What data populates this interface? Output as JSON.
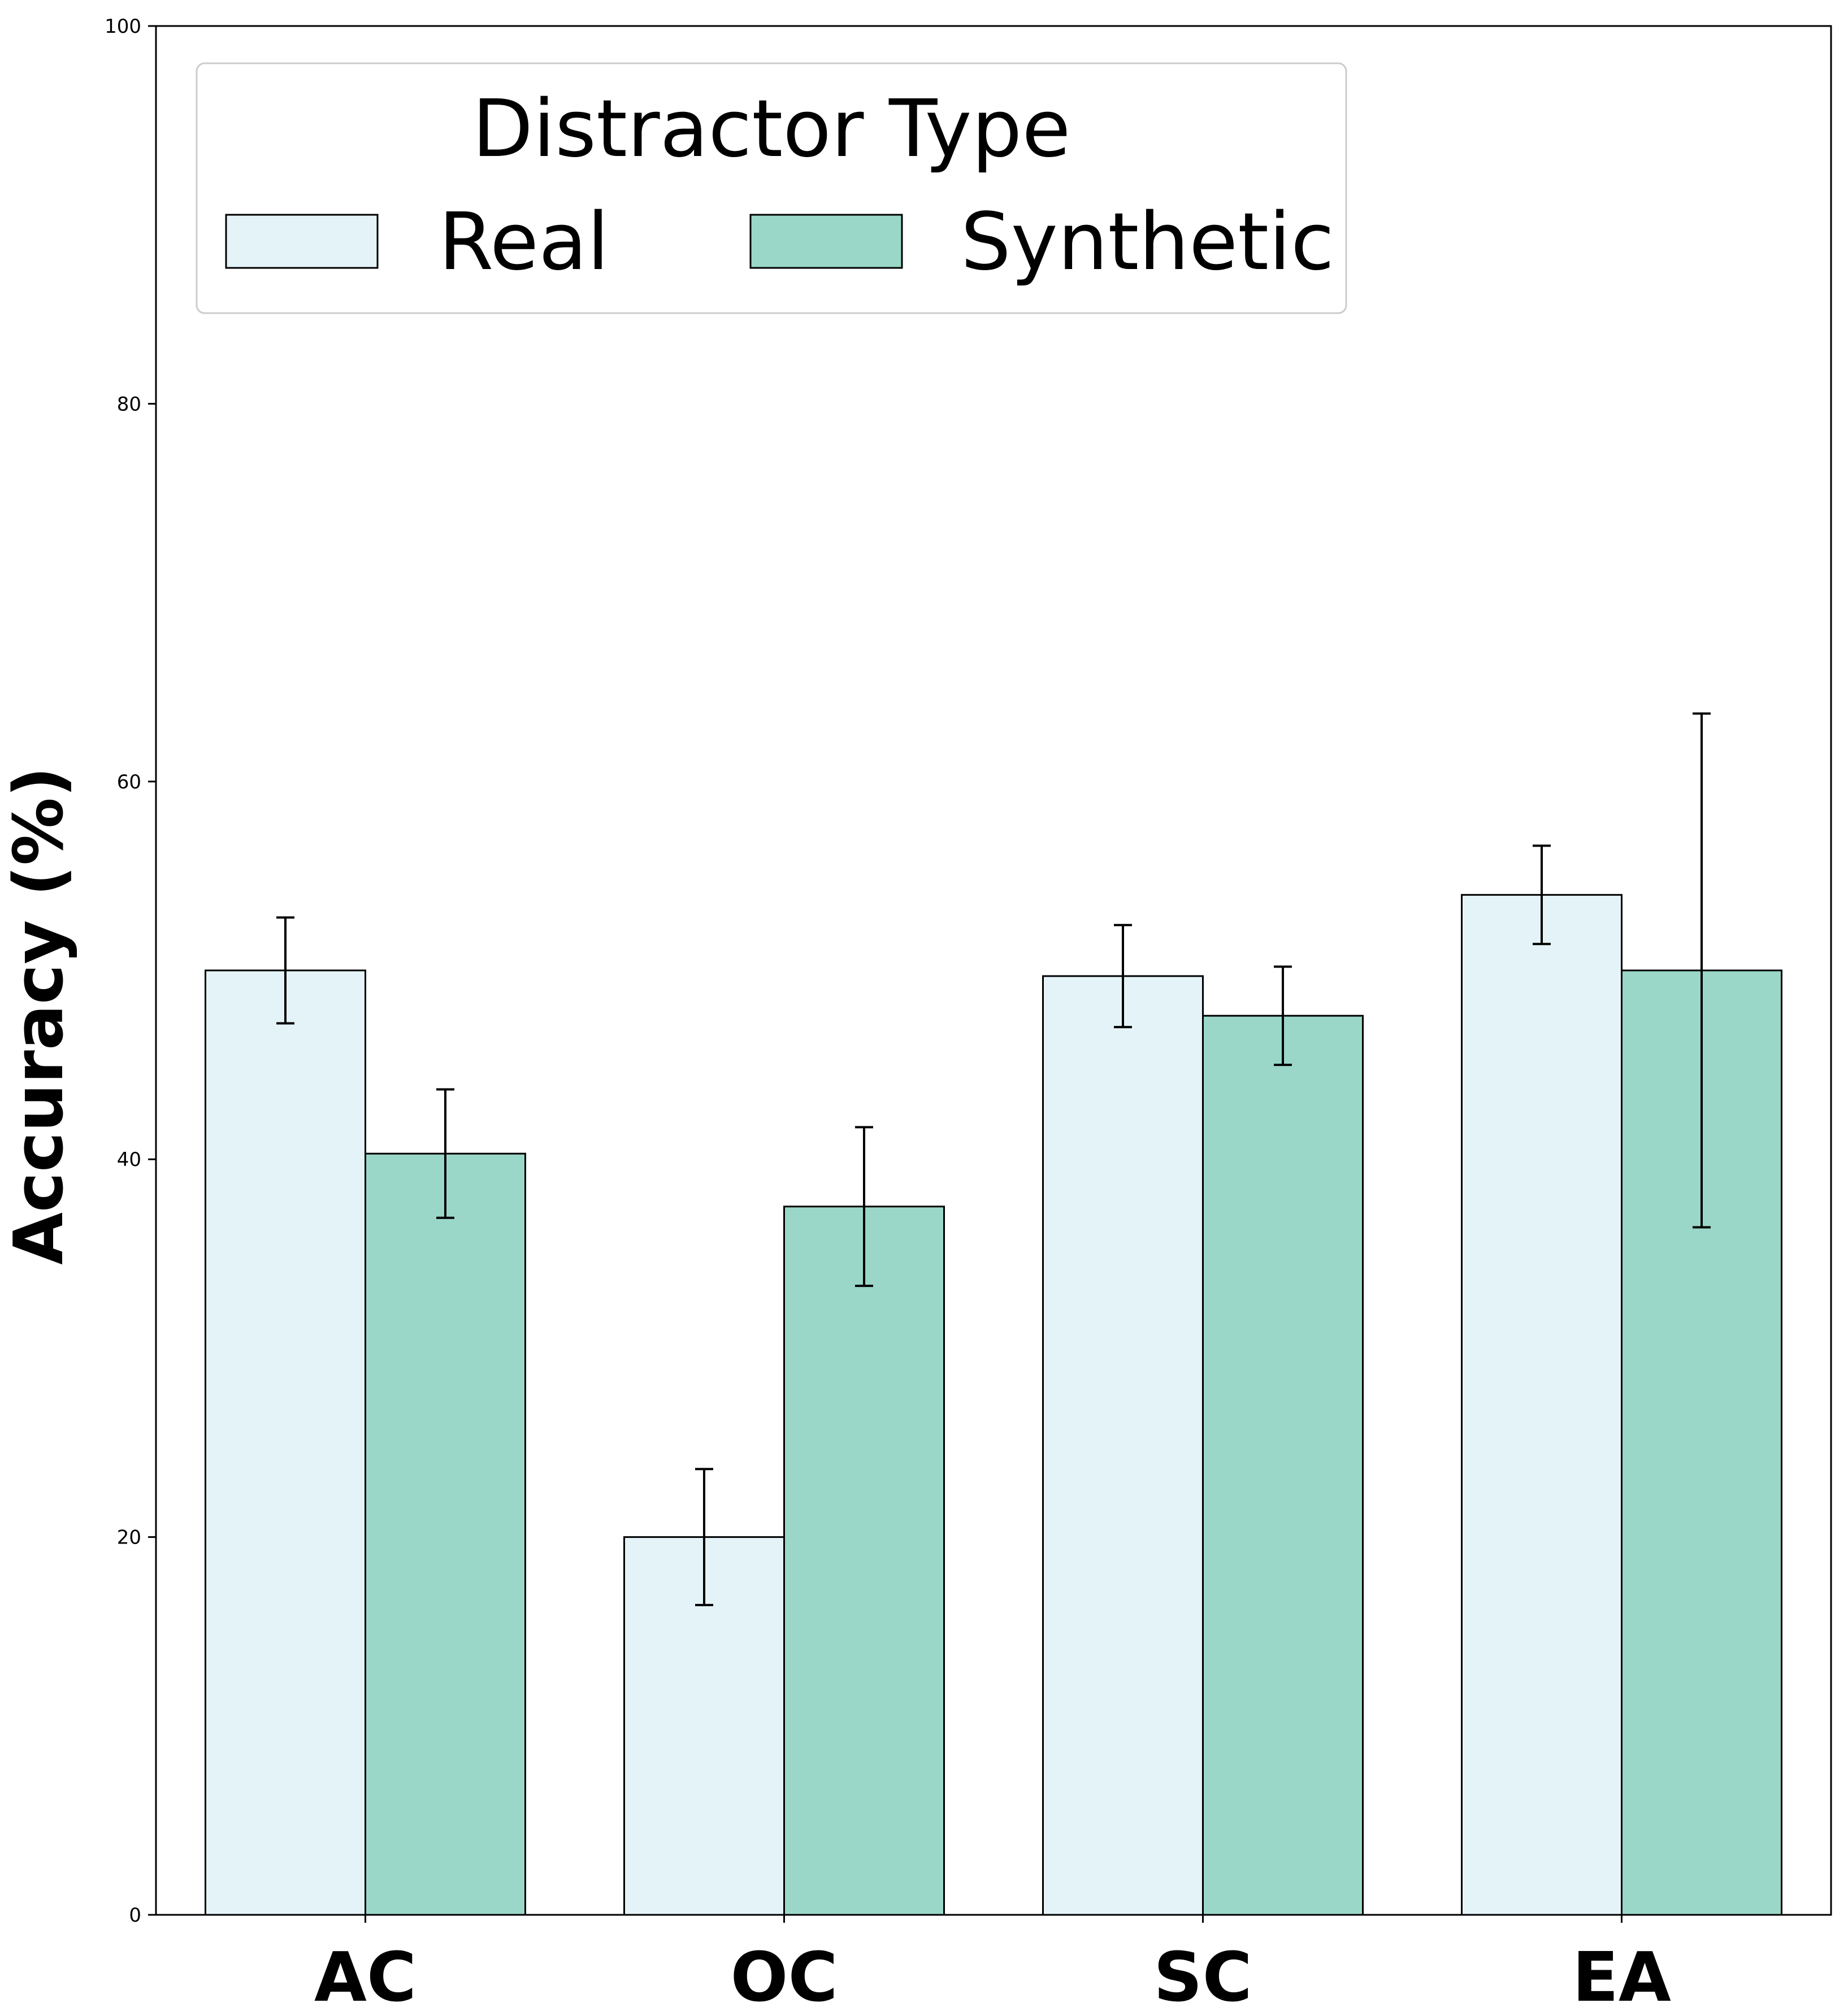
{
  "chart_data": {
    "type": "bar",
    "title": "",
    "xlabel": "",
    "ylabel": "Accuracy (%)",
    "ylim": [
      0,
      100
    ],
    "yticks": [
      "0",
      "20",
      "40",
      "60",
      "80",
      "100"
    ],
    "categories": [
      "AC",
      "OC",
      "SC",
      "EA"
    ],
    "legend": {
      "title": "Distractor Type",
      "position": "top-left"
    },
    "series": [
      {
        "name": "Real",
        "color": "#e4f3f8",
        "values": [
          50.0,
          20.0,
          49.7,
          54.0
        ],
        "errors": [
          2.8,
          3.6,
          2.7,
          2.6
        ]
      },
      {
        "name": "Synthetic",
        "color": "#9ad7c8",
        "values": [
          40.3,
          37.5,
          47.6,
          50.0
        ],
        "errors": [
          3.4,
          4.2,
          2.6,
          13.6
        ]
      }
    ],
    "grid": false
  }
}
